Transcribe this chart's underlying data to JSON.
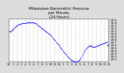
{
  "title": "Milwaukee Barometric Pressure\nper Minute\n(24 Hours)",
  "background_color": "#dddddd",
  "plot_bg_color": "#ffffff",
  "dot_color": "#0000ff",
  "dot_size": 0.8,
  "grid_color": "#888888",
  "grid_style": "--",
  "ylim": [
    29.0,
    30.55
  ],
  "xlim": [
    0,
    1440
  ],
  "yticks": [
    29.1,
    29.2,
    29.3,
    29.4,
    29.5,
    29.6,
    29.7,
    29.8,
    29.9,
    30.0,
    30.1,
    30.2,
    30.3,
    30.4,
    30.5
  ],
  "x_tick_positions": [
    0,
    60,
    120,
    180,
    240,
    300,
    360,
    420,
    480,
    540,
    600,
    660,
    720,
    780,
    840,
    900,
    960,
    1020,
    1080,
    1140,
    1200,
    1260,
    1320,
    1380,
    1440
  ],
  "x_tick_labels": [
    "12",
    "1",
    "2",
    "3",
    "4",
    "5",
    "6",
    "7",
    "8",
    "9",
    "10",
    "11",
    "12",
    "1",
    "2",
    "3",
    "4",
    "5",
    "6",
    "7",
    "8",
    "9",
    "10",
    "11",
    "12"
  ],
  "pressure_data": [
    30.12,
    30.1,
    30.09,
    30.11,
    30.13,
    30.15,
    30.18,
    30.2,
    30.22,
    30.24,
    30.26,
    30.28,
    30.3,
    30.32,
    30.34,
    30.35,
    30.36,
    30.37,
    30.37,
    30.38,
    30.38,
    30.38,
    30.39,
    30.39,
    30.4,
    30.4,
    30.41,
    30.41,
    30.42,
    30.42,
    30.43,
    30.43,
    30.43,
    30.43,
    30.42,
    30.42,
    30.41,
    30.41,
    30.4,
    30.39,
    30.38,
    30.36,
    30.34,
    30.32,
    30.3,
    30.28,
    30.26,
    30.24,
    30.22,
    30.2,
    30.18,
    30.16,
    30.15,
    30.14,
    30.12,
    30.1,
    30.08,
    30.06,
    30.04,
    30.02,
    30.0,
    29.98,
    29.96,
    29.93,
    29.9,
    29.87,
    29.84,
    29.81,
    29.78,
    29.75,
    29.72,
    29.69,
    29.66,
    29.63,
    29.6,
    29.57,
    29.54,
    29.51,
    29.48,
    29.45,
    29.42,
    29.39,
    29.36,
    29.33,
    29.3,
    29.27,
    29.24,
    29.21,
    29.18,
    29.15,
    29.12,
    29.09,
    29.07,
    29.05,
    29.04,
    29.03,
    29.02,
    29.01,
    29.01,
    29.0,
    29.0,
    29.0,
    29.01,
    29.02,
    29.04,
    29.06,
    29.09,
    29.13,
    29.17,
    29.22,
    29.27,
    29.32,
    29.37,
    29.41,
    29.45,
    29.48,
    29.51,
    29.53,
    29.55,
    29.56,
    29.57,
    29.57,
    29.57,
    29.56,
    29.55,
    29.54,
    29.53,
    29.53,
    29.54,
    29.55,
    29.56,
    29.57,
    29.58,
    29.59,
    29.6,
    29.61,
    29.62,
    29.63,
    29.64,
    29.65,
    29.66,
    29.67,
    29.68,
    29.69,
    29.7,
    29.71,
    29.72,
    29.6,
    29.58,
    29.62
  ],
  "title_fontsize": 4.0,
  "tick_fontsize": 3.2
}
